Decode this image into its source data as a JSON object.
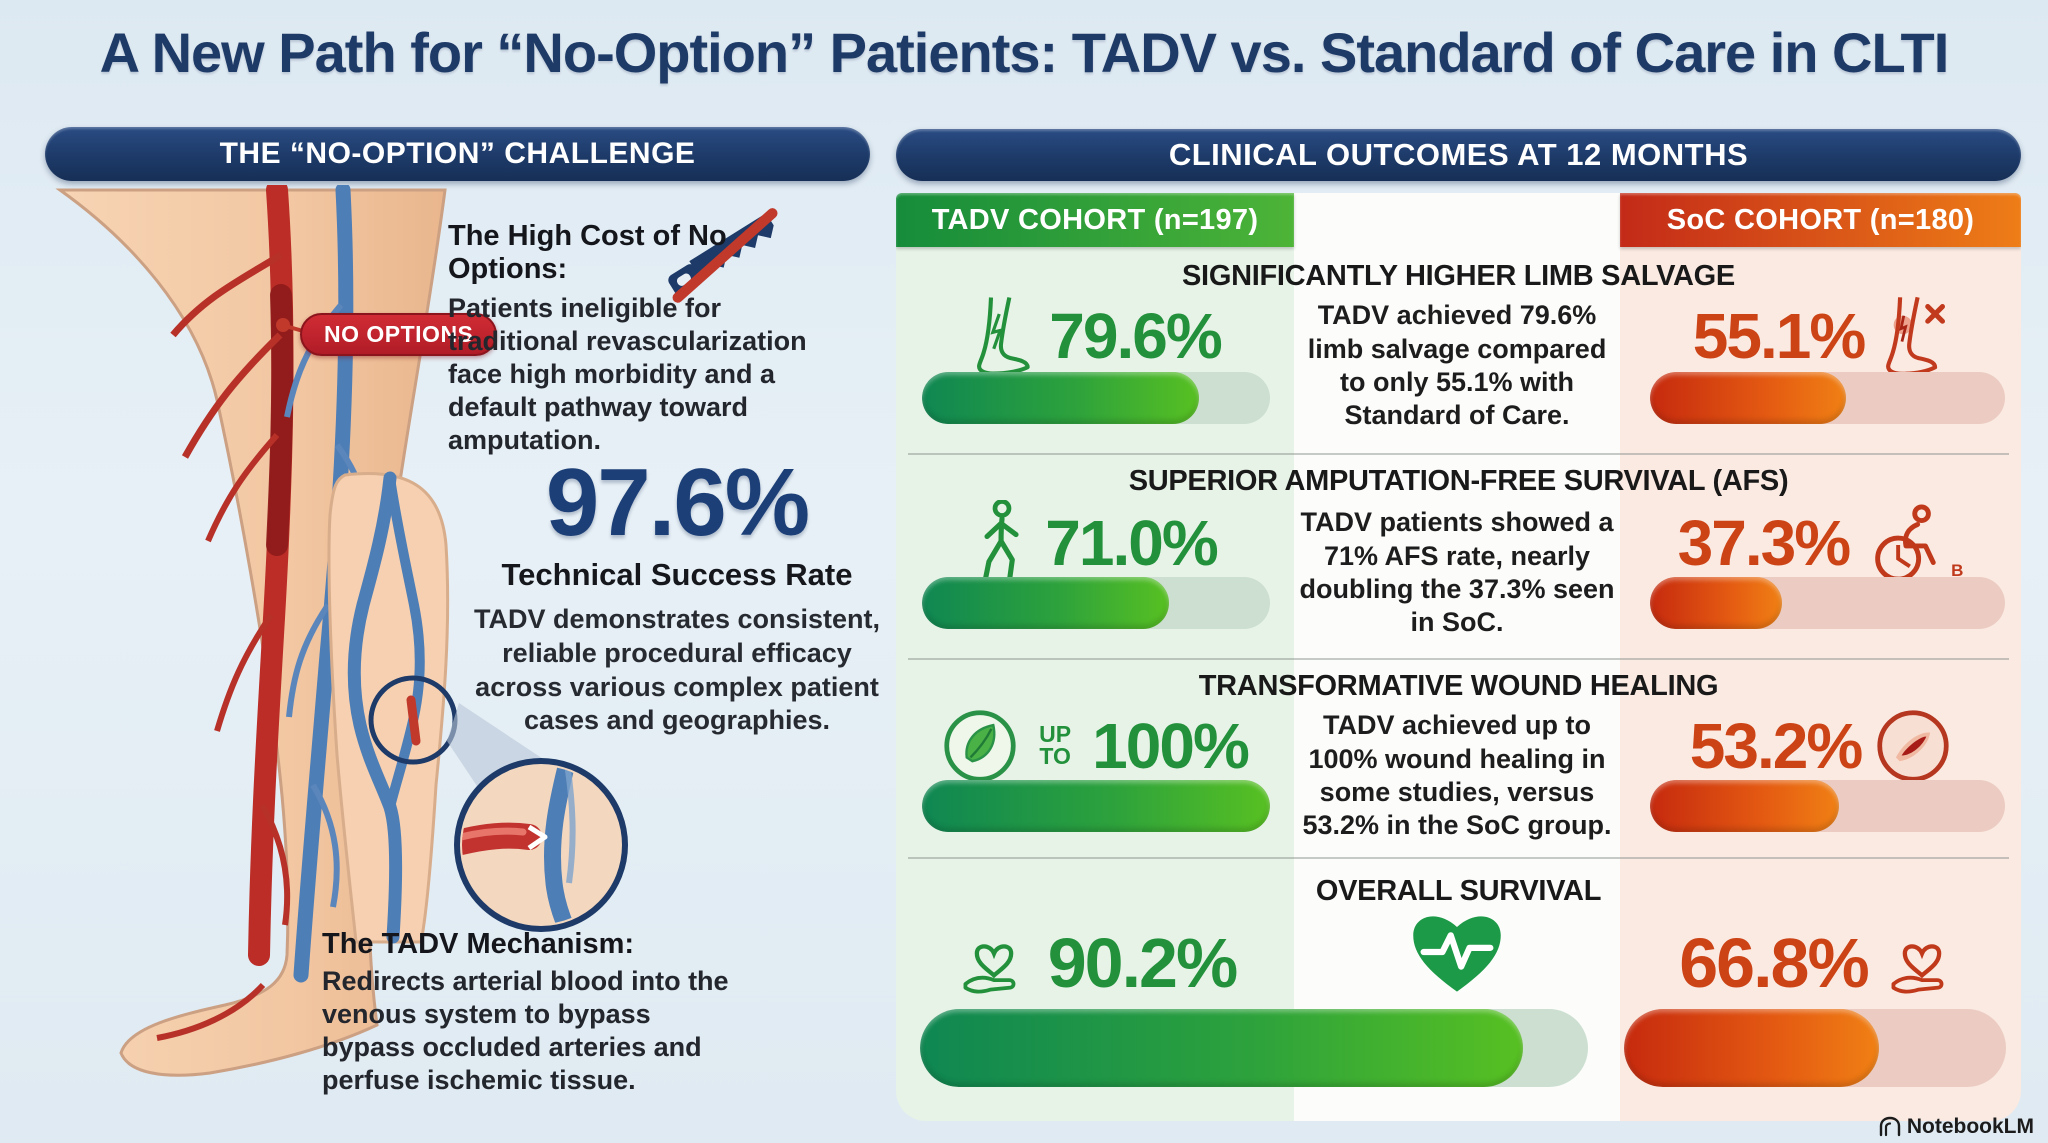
{
  "page": {
    "title": "A New Path for “No-Option” Patients: TADV vs. Standard of Care in CLTI",
    "watermark": "NotebookLM"
  },
  "left_panel": {
    "header": "THE “NO-OPTION” CHALLENGE",
    "no_options_badge": "NO OPTIONS",
    "high_cost": {
      "heading": "The High Cost of No Options:",
      "body": "Patients ineligible for traditional revascularization face high morbidity and a default pathway toward amputation."
    },
    "success": {
      "value": "97.6%",
      "label": "Technical Success Rate",
      "body": "TADV demonstrates consistent, reliable procedural efficacy across various complex patient cases and geographies."
    },
    "mechanism": {
      "heading": "The TADV Mechanism:",
      "body": "Redirects arterial blood into the venous system to bypass bypass occluded arteries and perfuse ischemic tissue."
    }
  },
  "right_panel": {
    "header": "CLINICAL OUTCOMES AT 12 MONTHS",
    "cohort_tadv": "TADV COHORT (n=197)",
    "cohort_soc": "SoC COHORT (n=180)",
    "rows": [
      {
        "heading": "SIGNIFICANTLY HIGHER LIMB SALVAGE",
        "tadv_value": "79.6%",
        "soc_value": "55.1%",
        "body": "TADV achieved 79.6% limb salvage compared to only 55.1% with Standard of Care."
      },
      {
        "heading": "SUPERIOR AMPUTATION-FREE SURVIVAL (AFS)",
        "tadv_value": "71.0%",
        "soc_value": "37.3%",
        "soc_icon_sublabel": "B",
        "body": "TADV patients showed a 71% AFS rate, nearly doubling the 37.3% seen in SoC."
      },
      {
        "heading": "TRANSFORMATIVE WOUND HEALING",
        "tadv_prefix": "UP TO",
        "tadv_value": "100%",
        "soc_value": "53.2%",
        "body": "TADV achieved up to 100% wound healing in some studies, versus 53.2% in the SoC group."
      },
      {
        "heading": "OVERALL SURVIVAL",
        "tadv_value": "90.2%",
        "soc_value": "66.8%"
      }
    ]
  },
  "icons": {
    "saw-icon": "crossed-out amputation saw",
    "limb-salvage-leg-icon": "green leg with lightning bolt",
    "amputated-leg-icon": "red wounded leg with X",
    "walking-person-icon": "green walking figure",
    "wheelchair-icon": "red wheelchair user",
    "leaf-icon": "green leaf in circle",
    "wound-icon": "open wound in circle",
    "heart-hand-icon": "heart over open hand",
    "heart-pulse-icon": "green heart with ECG line",
    "notebooklm-logo": "NotebookLM fan logo"
  },
  "colors": {
    "navy_header": "#1d3a68",
    "title_navy": "#1e3a66",
    "tadv_green": "#23913c",
    "soc_orange": "#cc4316",
    "green_header_gradient": [
      "#168c3b",
      "#4db437"
    ],
    "soc_header_gradient": [
      "#c32a18",
      "#ee7d17"
    ],
    "tadv_column_bg": "#e7f3e7",
    "soc_column_bg": "#faeae2",
    "badge_red": "#c2242e"
  },
  "chart_data": {
    "type": "bar",
    "title": "Clinical Outcomes at 12 Months",
    "categories": [
      "Limb Salvage",
      "Amputation-Free Survival (AFS)",
      "Wound Healing (up to)",
      "Overall Survival"
    ],
    "series": [
      {
        "name": "TADV Cohort (n=197)",
        "color": "#2da23c",
        "values": [
          79.6,
          71.0,
          100,
          90.2
        ]
      },
      {
        "name": "SoC Cohort (n=180)",
        "color": "#e45a12",
        "values": [
          55.1,
          37.3,
          53.2,
          66.8
        ]
      }
    ],
    "ylim": [
      0,
      100
    ],
    "value_unit": "%",
    "legend_position": "top",
    "grid": false,
    "additional_stat": {
      "label": "Technical Success Rate (TADV)",
      "value": 97.6
    }
  }
}
